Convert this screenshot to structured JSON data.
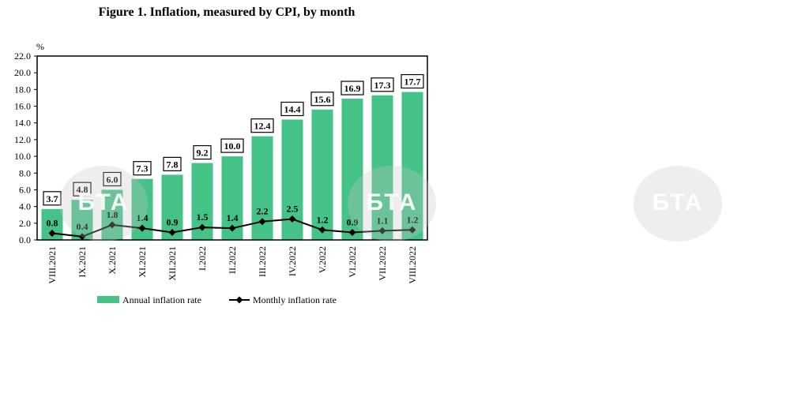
{
  "chart_data": {
    "type": "bar",
    "title": "Figure 1. Inflation, measured by CPI, by month",
    "ylabel": "%",
    "ylim": [
      0,
      22
    ],
    "yticks": [
      "0.0",
      "2.0",
      "4.0",
      "6.0",
      "8.0",
      "10.0",
      "12.0",
      "14.0",
      "16.0",
      "18.0",
      "20.0",
      "22.0"
    ],
    "categories": [
      "VIII.2021",
      "IX.2021",
      "X.2021",
      "XI.2021",
      "XII.2021",
      "I.2022",
      "II.2022",
      "III.2022",
      "IV.2022",
      "V.2022",
      "VI.2022",
      "VII.2022",
      "VIII.2022"
    ],
    "series": [
      {
        "name": "Annual inflation rate",
        "type": "bar",
        "color": "#45c287",
        "values": [
          3.7,
          4.8,
          6.0,
          7.3,
          7.8,
          9.2,
          10.0,
          12.4,
          14.4,
          15.6,
          16.9,
          17.3,
          17.7
        ],
        "labels": [
          "3.7",
          "4.8",
          "6.0",
          "7.3",
          "7.8",
          "9.2",
          "10.0",
          "12.4",
          "14.4",
          "15.6",
          "16.9",
          "17.3",
          "17.7"
        ]
      },
      {
        "name": "Monthly inflation rate",
        "type": "line",
        "color": "#000000",
        "values": [
          0.8,
          0.4,
          1.8,
          1.4,
          0.9,
          1.5,
          1.4,
          2.2,
          2.5,
          1.2,
          0.9,
          1.1,
          1.2
        ],
        "labels": [
          "0.8",
          "0.4",
          "1.8",
          "1.4",
          "0.9",
          "1.5",
          "1.4",
          "2.2",
          "2.5",
          "1.2",
          "0.9",
          "1.1",
          "1.2"
        ]
      }
    ],
    "legend_position": "bottom",
    "grid": false
  },
  "watermark": "БТА"
}
